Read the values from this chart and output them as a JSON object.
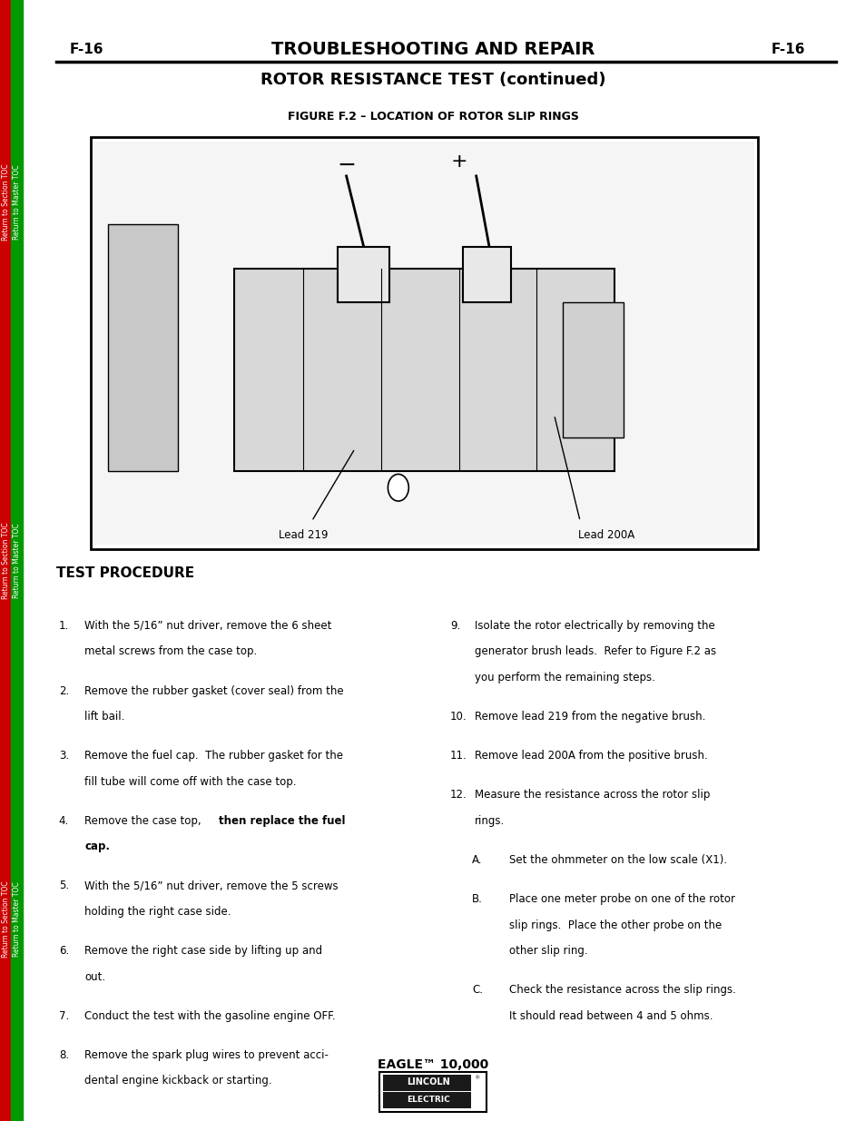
{
  "page_bg": "#ffffff",
  "sidebar_red_color": "#cc0000",
  "sidebar_green_color": "#009900",
  "header_left": "F-16",
  "header_center": "TROUBLESHOOTING AND REPAIR",
  "header_right": "F-16",
  "subheader": "ROTOR RESISTANCE TEST (continued)",
  "figure_title": "FIGURE F.2 – LOCATION OF ROTOR SLIP RINGS",
  "test_procedure_header": "TEST PROCEDURE",
  "footer_text": "EAGLE™ 10,000",
  "lead_219_label": "Lead 219",
  "lead_200a_label": "Lead 200A",
  "sidebar_text_section": "Return to Section TOC",
  "sidebar_text_master": "Return to Master TOC"
}
